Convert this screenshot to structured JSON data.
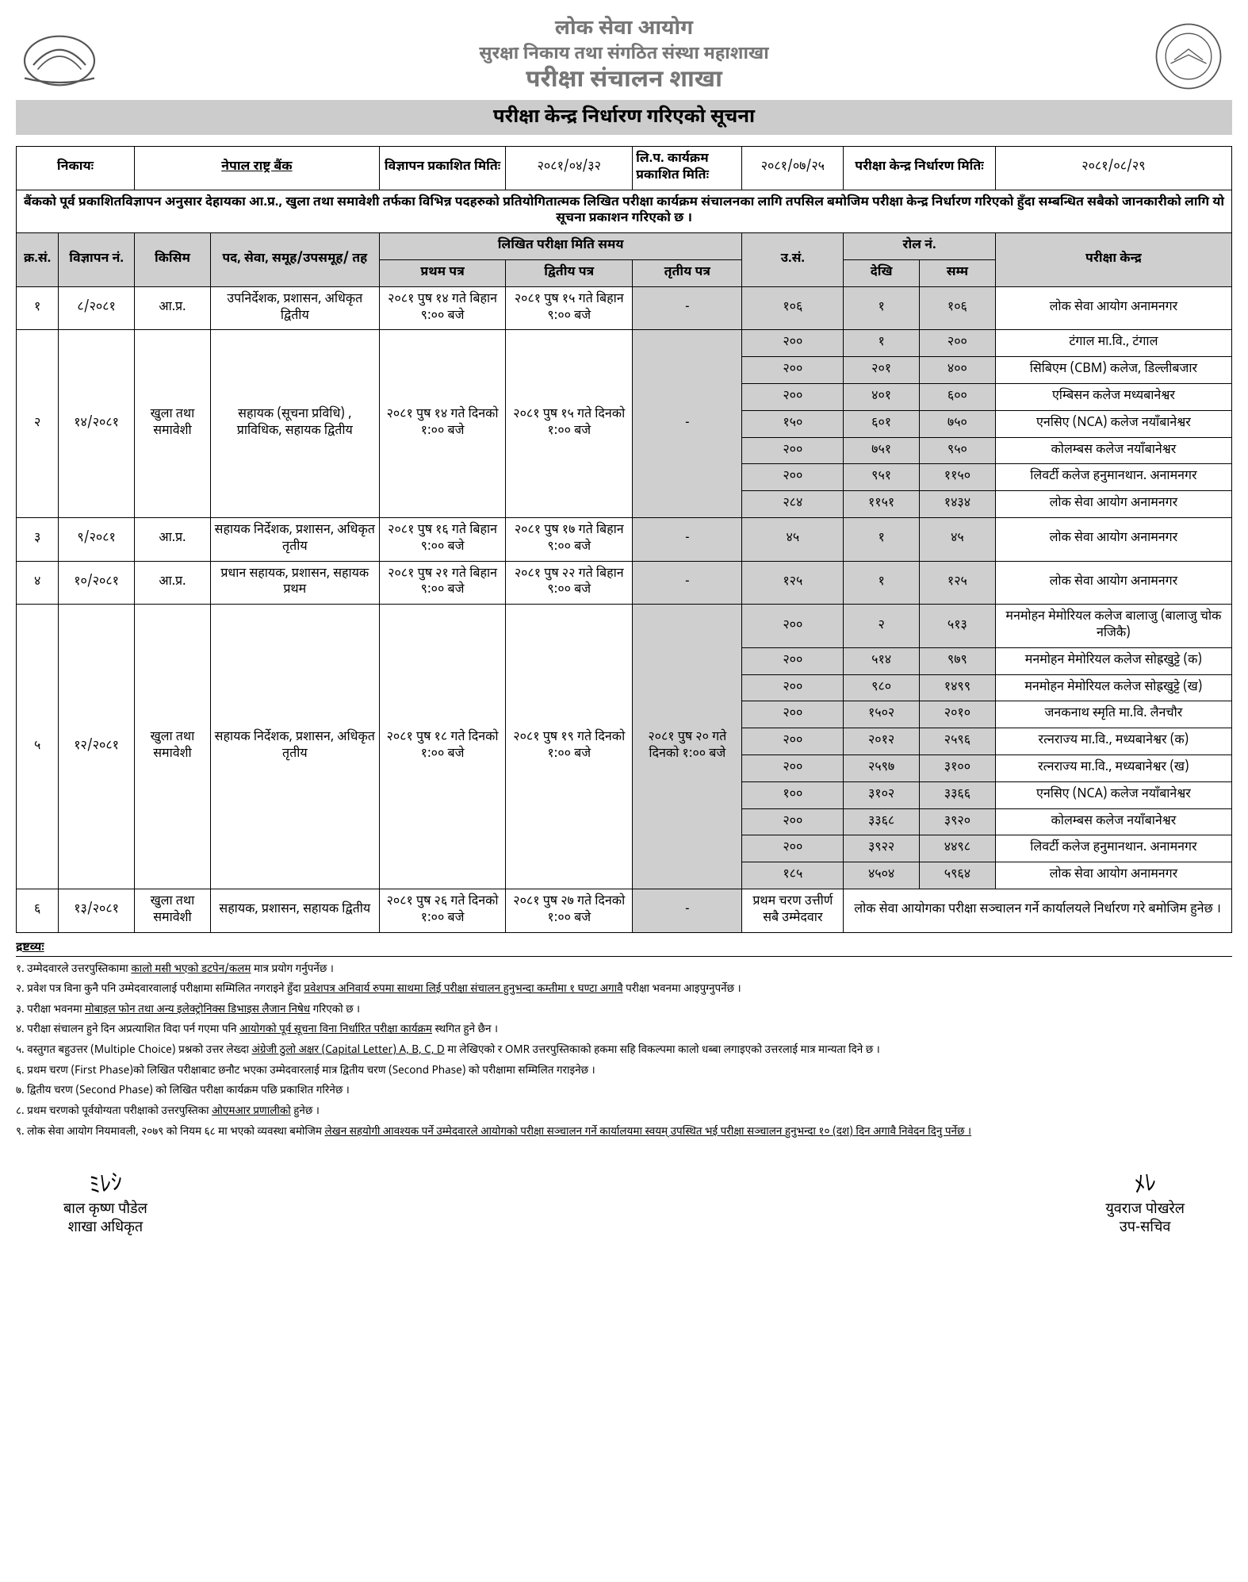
{
  "header": {
    "org": "लोक सेवा आयोग",
    "division": "सुरक्षा निकाय तथा संगठित संस्था महाशाखा",
    "branch": "परीक्षा संचालन शाखा",
    "notice_title": "परीक्षा केन्द्र निर्धारण गरिएको सूचना"
  },
  "meta": {
    "nikaya_label": "निकायः",
    "nikaya_value": "नेपाल राष्ट्र बैंक",
    "ad_pub_label": "विज्ञापन प्रकाशित मितिः",
    "ad_pub_value": "२०८१/०४/३२",
    "lp_label": "लि.प. कार्यक्रम प्रकाशित मितिः",
    "lp_value": "२०८१/०७/२५",
    "center_label": "परीक्षा केन्द्र निर्धारण मितिः",
    "center_value": "२०८१/०८/२९"
  },
  "intro_text": "बैंकको पूर्व प्रकाशितविज्ञापन अनुसार देहायका आ.प्र., खुला तथा समावेशी तर्फका विभिन्न पदहरुको प्रतियोगितात्मक लिखित परीक्षा कार्यक्रम संचालनका लागि तपसिल बमोजिम परीक्षा केन्द्र निर्धारण गरिएको हुँदा सम्बन्धित सबैको जानकारीको लागि यो सूचना प्रकाशन गरिएको छ ।",
  "columns": {
    "sn": "क्र.सं.",
    "adno": "विज्ञापन नं.",
    "kisim": "किसिम",
    "post": "पद, सेवा, समूह/उपसमूह/ तह",
    "exam_time": "लिखित परीक्षा मिति समय",
    "p1": "प्रथम पत्र",
    "p2": "द्वितीय पत्र",
    "p3": "तृतीय पत्र",
    "usan": "उ.सं.",
    "rollno": "रोल नं.",
    "roll_from": "देखि",
    "roll_to": "सम्म",
    "center": "परीक्षा केन्द्र"
  },
  "rows": [
    {
      "sn": "१",
      "adno": "८/२०८१",
      "kisim": "आ.प्र.",
      "post": "उपनिर्देशक, प्रशासन, अधिकृत द्वितीय",
      "p1": "२०८१ पुष १४ गते बिहान ९:०० बजे",
      "p2": "२०८१ पुष १५ गते बिहान ९:०० बजे",
      "p3": "-",
      "centers": [
        {
          "usan": "१०६",
          "from": "१",
          "to": "१०६",
          "center": "लोक सेवा आयोग अनामनगर"
        }
      ]
    },
    {
      "sn": "२",
      "adno": "१४/२०८१",
      "kisim": "खुला तथा समावेशी",
      "post": "सहायक (सूचना प्रविधि) , प्राविधिक, सहायक द्वितीय",
      "p1": "२०८१ पुष १४ गते दिनको १:०० बजे",
      "p2": "२०८१ पुष १५ गते दिनको १:०० बजे",
      "p3": "-",
      "centers": [
        {
          "usan": "२००",
          "from": "१",
          "to": "२००",
          "center": "टंगाल मा.वि., टंगाल"
        },
        {
          "usan": "२००",
          "from": "२०१",
          "to": "४००",
          "center": "सिबिएम (CBM) कलेज, डिल्लीबजार"
        },
        {
          "usan": "२००",
          "from": "४०१",
          "to": "६००",
          "center": "एम्बिसन कलेज मध्यबानेश्वर"
        },
        {
          "usan": "१५०",
          "from": "६०१",
          "to": "७५०",
          "center": "एनसिए (NCA) कलेज नयाँबानेश्वर"
        },
        {
          "usan": "२००",
          "from": "७५१",
          "to": "९५०",
          "center": "कोलम्बस कलेज नयाँबानेश्वर"
        },
        {
          "usan": "२००",
          "from": "९५१",
          "to": "११५०",
          "center": "लिवर्टी कलेज हनुमानथान. अनामनगर"
        },
        {
          "usan": "२८४",
          "from": "११५१",
          "to": "१४३४",
          "center": "लोक सेवा आयोग अनामनगर"
        }
      ]
    },
    {
      "sn": "३",
      "adno": "९/२०८१",
      "kisim": "आ.प्र.",
      "post": "सहायक निर्देशक, प्रशासन, अधिकृत तृतीय",
      "p1": "२०८१ पुष १६ गते बिहान ९:०० बजे",
      "p2": "२०८१ पुष १७ गते बिहान ९:०० बजे",
      "p3": "-",
      "centers": [
        {
          "usan": "४५",
          "from": "१",
          "to": "४५",
          "center": "लोक सेवा आयोग अनामनगर"
        }
      ]
    },
    {
      "sn": "४",
      "adno": "१०/२०८१",
      "kisim": "आ.प्र.",
      "post": "प्रधान सहायक, प्रशासन, सहायक प्रथम",
      "p1": "२०८१ पुष २१ गते बिहान ९:०० बजे",
      "p2": "२०८१ पुष २२ गते बिहान ९:०० बजे",
      "p3": "-",
      "centers": [
        {
          "usan": "१२५",
          "from": "१",
          "to": "१२५",
          "center": "लोक सेवा आयोग अनामनगर"
        }
      ]
    },
    {
      "sn": "५",
      "adno": "१२/२०८१",
      "kisim": "खुला तथा समावेशी",
      "post": "सहायक निर्देशक, प्रशासन, अधिकृत तृतीय",
      "p1": "२०८१ पुष १८ गते दिनको १:०० बजे",
      "p2": "२०८१ पुष १९ गते दिनको १:०० बजे",
      "p3": "२०८१ पुष २० गते दिनको १:०० बजे",
      "centers": [
        {
          "usan": "२००",
          "from": "२",
          "to": "५१३",
          "center": "मनमोहन मेमोरियल कलेज बालाजु (बालाजु चोक नजिकै)"
        },
        {
          "usan": "२००",
          "from": "५१४",
          "to": "९७९",
          "center": "मनमोहन मेमोरियल कलेज सोह्रखुट्टे (क)"
        },
        {
          "usan": "२००",
          "from": "९८०",
          "to": "१४९९",
          "center": "मनमोहन मेमोरियल कलेज सोह्रखुट्टे (ख)"
        },
        {
          "usan": "२००",
          "from": "१५०२",
          "to": "२०१०",
          "center": "जनकनाथ स्मृति मा.वि. लैनचौर"
        },
        {
          "usan": "२००",
          "from": "२०१२",
          "to": "२५९६",
          "center": "रत्नराज्य मा.वि., मध्यबानेश्वर (क)"
        },
        {
          "usan": "२००",
          "from": "२५९७",
          "to": "३१००",
          "center": "रत्नराज्य मा.वि., मध्यबानेश्वर (ख)"
        },
        {
          "usan": "१००",
          "from": "३१०२",
          "to": "३३६६",
          "center": "एनसिए (NCA) कलेज नयाँबानेश्वर"
        },
        {
          "usan": "२००",
          "from": "३३६८",
          "to": "३९२०",
          "center": "कोलम्बस कलेज नयाँबानेश्वर"
        },
        {
          "usan": "२००",
          "from": "३९२२",
          "to": "४४९८",
          "center": "लिवर्टी कलेज हनुमानथान. अनामनगर"
        },
        {
          "usan": "१८५",
          "from": "४५०४",
          "to": "५९६४",
          "center": "लोक सेवा आयोग अनामनगर"
        }
      ]
    },
    {
      "sn": "६",
      "adno": "१३/२०८१",
      "kisim": "खुला तथा समावेशी",
      "post": "सहायक, प्रशासन, सहायक द्वितीय",
      "p1": "२०८१ पुष २६ गते दिनको १:०० बजे",
      "p2": "२०८१ पुष २७ गते दिनको १:०० बजे",
      "p3": "-",
      "special_usan": "प्रथम चरण उत्तीर्ण सबै उम्मेदवार",
      "special_center": "लोक सेवा आयोगका परीक्षा सञ्चालन गर्ने कार्यालयले निर्धारण गरे बमोजिम हुनेछ ।"
    }
  ],
  "notes_title": "द्रष्टव्यः",
  "notes": [
    "१. उम्मेदवारले उत्तरपुस्तिकामा <u>कालो मसी भएको डटपेन/कलम</u> मात्र प्रयोग गर्नुपर्नेछ ।",
    "२. प्रवेश पत्र विना कुनै पनि उम्मेदवारवालाई परीक्षामा सम्मिलित नगराइने हुँदा <u>प्रवेशपत्र अनिवार्य रुपमा साथमा लिई परीक्षा संचालन हुनुभन्दा कम्तीमा १ घण्टा अगावै</u> परीक्षा भवनमा आइपुग्नुपर्नेछ ।",
    "३. परीक्षा भवनमा <u>मोबाइल फोन तथा अन्य इलेक्ट्रोनिक्स डिभाइस लैजान निषेध</u> गरिएको छ ।",
    "४. परीक्षा संचालन हुने दिन अप्रत्याशित विदा पर्न गएमा पनि <u>आयोगको पूर्व सूचना विना निर्धारित परीक्षा कार्यक्रम</u> स्थगित हुने छैन ।",
    "५. वस्तुगत बहुउत्तर (Multiple Choice) प्रश्नको उत्तर लेख्दा <u>अंग्रेजी ठुलो अक्षर (Capital Letter) A, B, C, D</u> मा लेखिएको र OMR उत्तरपुस्तिकाको हकमा सहि विकल्पमा कालो धब्बा लगाइएको उत्तरलाई मात्र मान्यता दिने छ ।",
    "६. प्रथम चरण (First Phase)को लिखित परीक्षाबाट छनौट भएका उम्मेदवारलाई मात्र द्वितीय चरण (Second Phase) को परीक्षामा सम्मिलित गराइनेछ ।",
    "७. द्वितीय चरण (Second Phase) को लिखित परीक्षा कार्यक्रम पछि प्रकाशित गरिनेछ ।",
    "८. प्रथम चरणको पूर्वयोग्यता परीक्षाको उत्तरपुस्तिका <u>ओएमआर प्रणालीको</u> हुनेछ ।",
    "९. लोक सेवा आयोग नियमावली, २०७९ को नियम ६८ मा भएको व्यवस्था बमोजिम <u>लेखन सहयोगी आवश्यक पर्ने उम्मेदवारले आयोगको परीक्षा सञ्चालन गर्ने कार्यालयमा स्वयम् उपस्थित भई परीक्षा सञ्चालन हुनुभन्दा १० (दश) दिन अगावै निवेदन दिनु पर्नेछ ।</u>"
  ],
  "signatures": {
    "left_name": "बाल कृष्ण पौडेल",
    "left_title": "शाखा अधिकृत",
    "right_name": "युवराज पोखरेल",
    "right_title": "उप-सचिव"
  }
}
